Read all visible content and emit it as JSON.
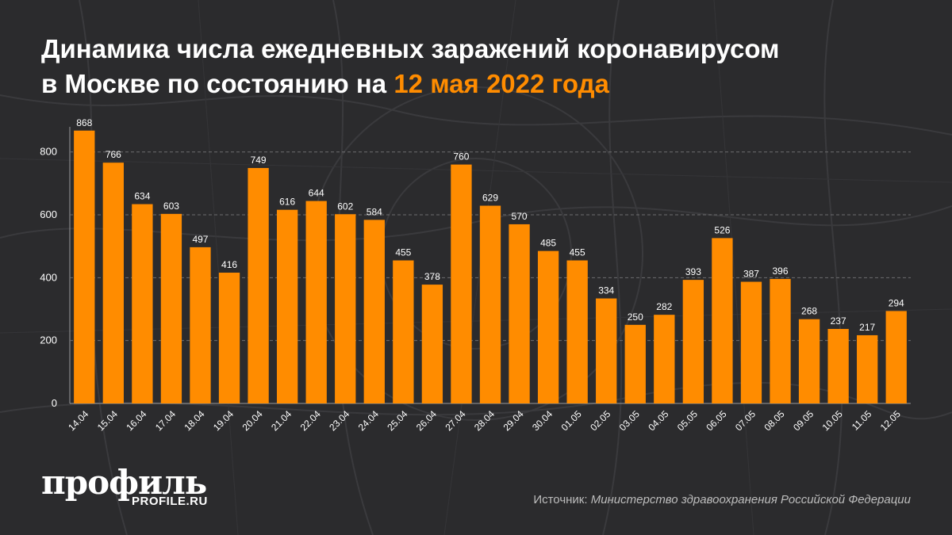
{
  "title": {
    "line1": "Динамика числа ежедневных заражений коронавирусом",
    "line2_prefix": "в Москве по состоянию на ",
    "line2_accent": "12 мая 2022 года"
  },
  "colors": {
    "bar": "#ff8c00",
    "accent": "#ff8c00",
    "background": "#2b2b2d",
    "text": "#ffffff"
  },
  "chart_data": {
    "type": "bar",
    "categories": [
      "14.04",
      "15.04",
      "16.04",
      "17.04",
      "18.04",
      "19.04",
      "20.04",
      "21.04",
      "22.04",
      "23.04",
      "24.04",
      "25.04",
      "26.04",
      "27.04",
      "28.04",
      "29.04",
      "30.04",
      "01.05",
      "02.05",
      "03.05",
      "04.05",
      "05.05",
      "06.05",
      "07.05",
      "08.05",
      "09.05",
      "10.05",
      "11.05",
      "12.05"
    ],
    "values": [
      868,
      766,
      634,
      603,
      497,
      416,
      749,
      616,
      644,
      602,
      584,
      455,
      378,
      760,
      629,
      570,
      485,
      455,
      334,
      250,
      282,
      393,
      526,
      387,
      396,
      268,
      237,
      217,
      294
    ],
    "yticks": [
      0,
      200,
      400,
      600,
      800
    ],
    "ylim": [
      0,
      880
    ],
    "grid": true,
    "data_labels": true
  },
  "logo": {
    "text": "профиль",
    "sub": "PROFILE.RU"
  },
  "source": {
    "label": "Источник: ",
    "text": "Министерство здравоохранения Российской Федерации"
  }
}
